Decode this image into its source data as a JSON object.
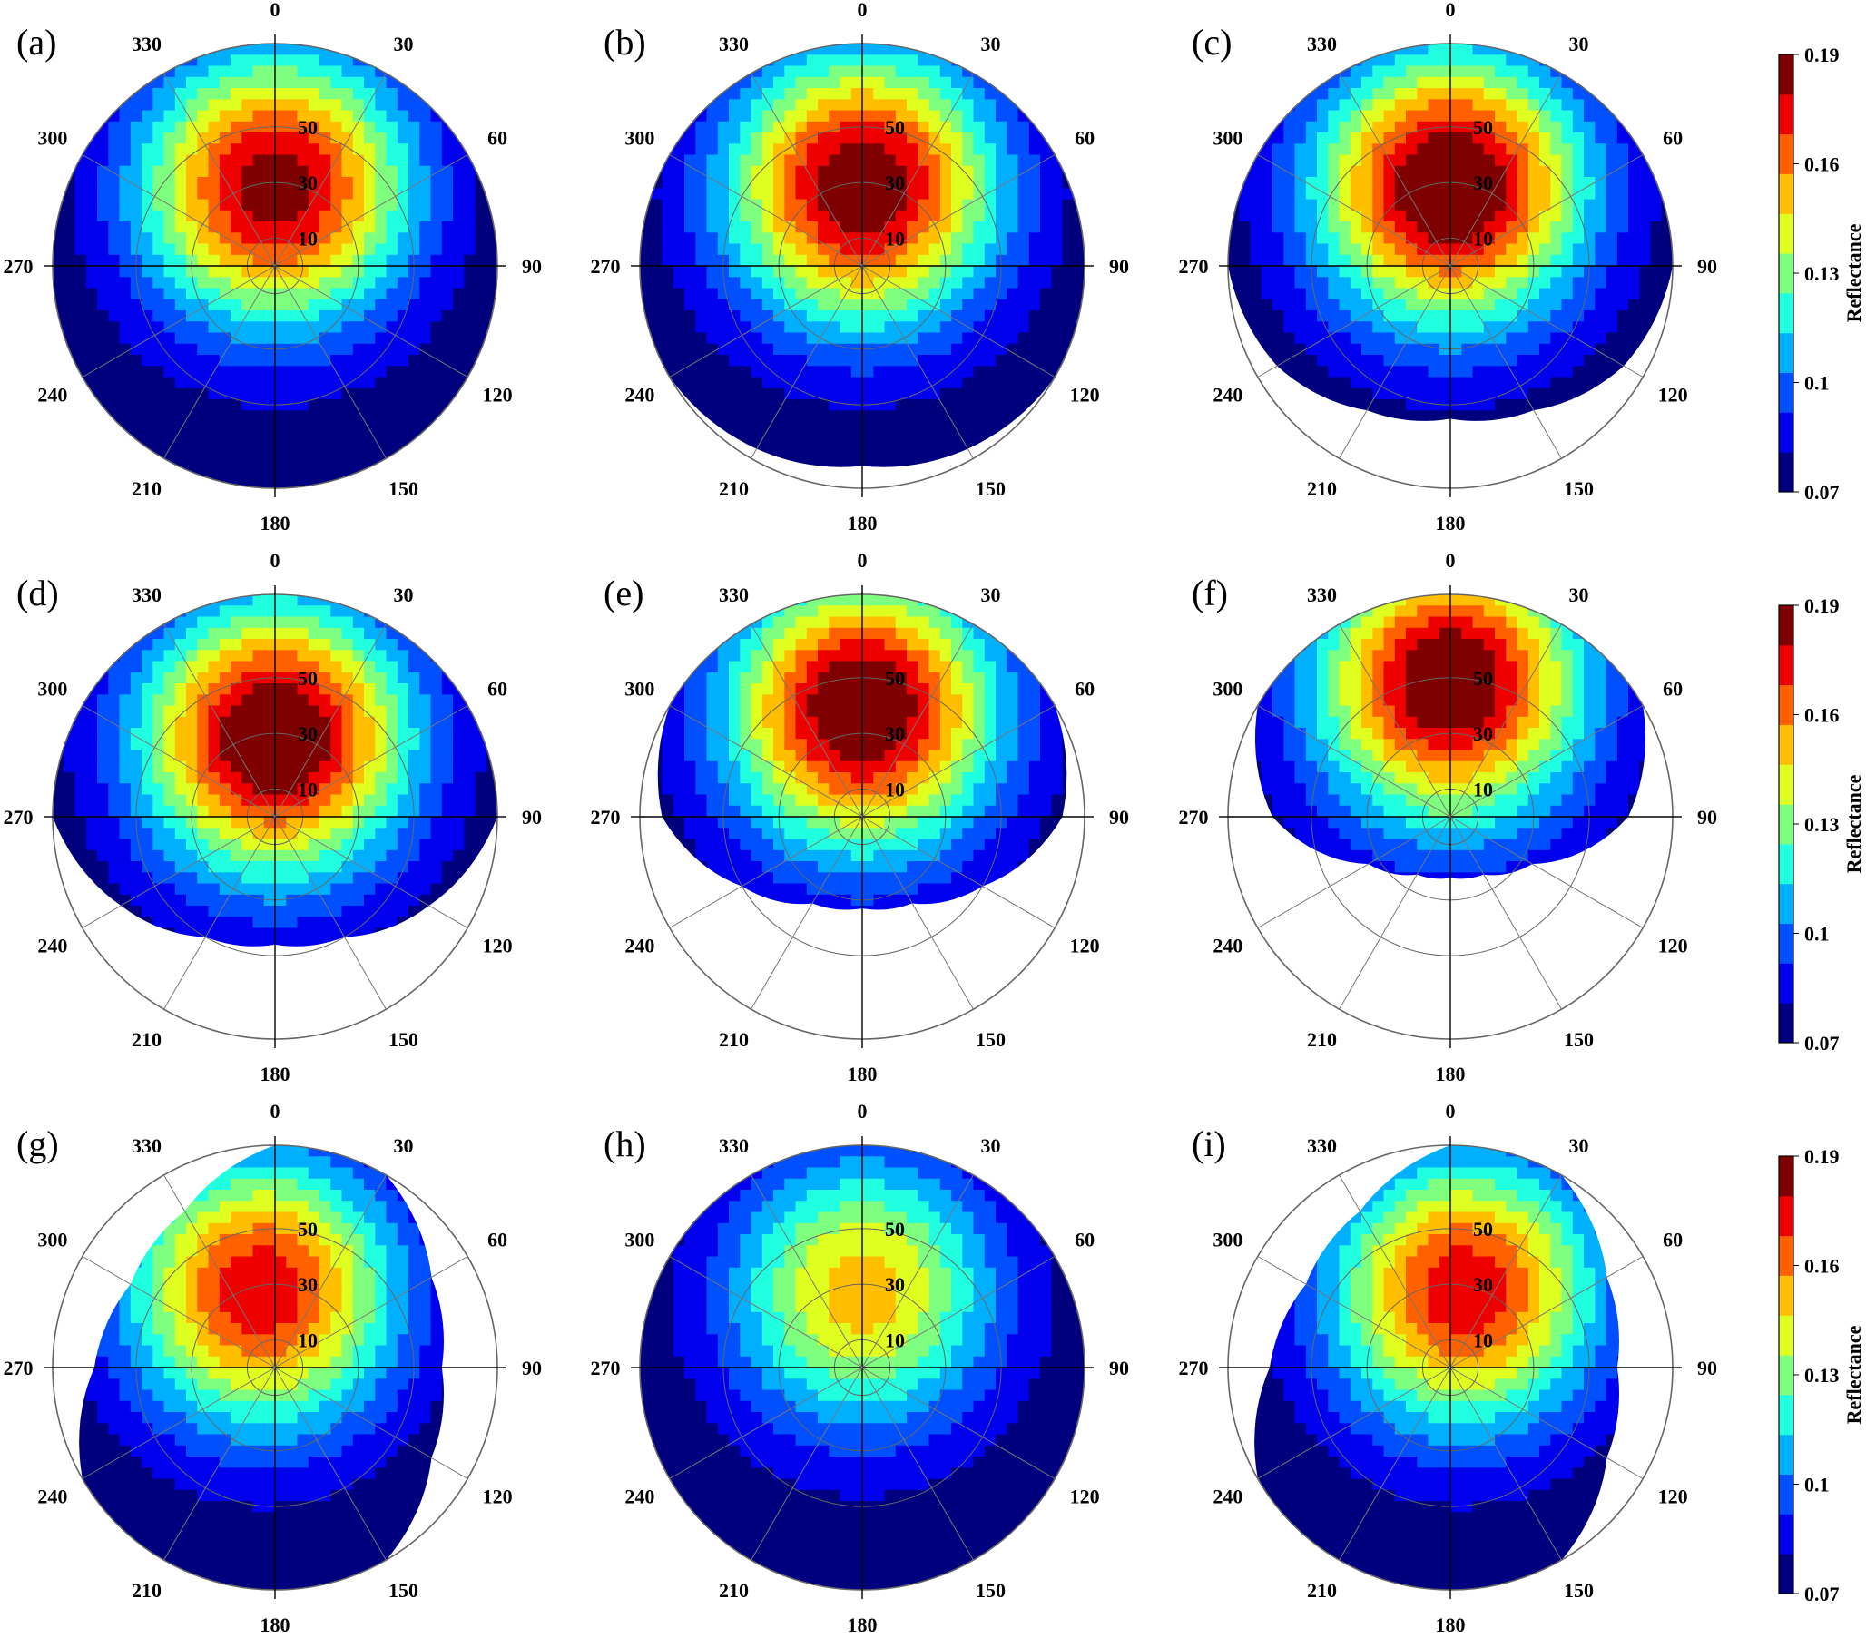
{
  "chart_data": {
    "type": "heatmap",
    "projection": "polar",
    "angular_ticks": [
      "0",
      "30",
      "60",
      "90",
      "120",
      "150",
      "180",
      "210",
      "240",
      "270",
      "300",
      "330"
    ],
    "radial_ticks": [
      "10",
      "30",
      "50"
    ],
    "colorbar": {
      "label": "Reflectance",
      "ticks": [
        "0.19",
        "0.16",
        "0.13",
        "0.1",
        "0.07"
      ],
      "range": [
        0.07,
        0.19
      ],
      "colormap": [
        "#00007f",
        "#0000ef",
        "#0050ff",
        "#00b0ff",
        "#20ffdf",
        "#7fff7f",
        "#dfff20",
        "#ffbf00",
        "#ff6000",
        "#ef0000",
        "#7f0000"
      ]
    },
    "panels": [
      {
        "label": "(a)",
        "hotspot_azimuth": 0,
        "hotspot_zenith": 30,
        "peak": 0.18,
        "coverage_zenith": [
          80,
          80,
          80,
          80,
          80,
          80,
          80,
          80,
          80,
          80,
          80,
          80
        ]
      },
      {
        "label": "(b)",
        "hotspot_azimuth": 0,
        "hotspot_zenith": 30,
        "peak": 0.185,
        "coverage_zenith": [
          80,
          80,
          80,
          80,
          80,
          76,
          72,
          76,
          80,
          80,
          80,
          80
        ]
      },
      {
        "label": "(c)",
        "hotspot_azimuth": 0,
        "hotspot_zenith": 30,
        "peak": 0.19,
        "coverage_zenith": [
          80,
          80,
          80,
          80,
          72,
          60,
          55,
          60,
          72,
          80,
          80,
          80
        ]
      },
      {
        "label": "(d)",
        "hotspot_azimuth": 0,
        "hotspot_zenith": 30,
        "peak": 0.19,
        "coverage_zenith": [
          80,
          80,
          80,
          80,
          64,
          50,
          46,
          50,
          64,
          80,
          80,
          80
        ]
      },
      {
        "label": "(e)",
        "hotspot_azimuth": 0,
        "hotspot_zenith": 40,
        "peak": 0.19,
        "coverage_zenith": [
          80,
          80,
          80,
          72,
          50,
          36,
          33,
          36,
          50,
          72,
          80,
          80
        ]
      },
      {
        "label": "(f)",
        "hotspot_azimuth": 0,
        "hotspot_zenith": 50,
        "peak": 0.19,
        "coverage_zenith": [
          80,
          80,
          80,
          64,
          34,
          24,
          22,
          24,
          34,
          64,
          80,
          80
        ]
      },
      {
        "label": "(g)",
        "hotspot_azimuth": 350,
        "hotspot_zenith": 30,
        "peak": 0.17,
        "coverage_zenith": [
          80,
          80,
          65,
          60,
          65,
          80,
          80,
          80,
          80,
          65,
          60,
          65
        ]
      },
      {
        "label": "(h)",
        "hotspot_azimuth": 0,
        "hotspot_zenith": 30,
        "peak": 0.145,
        "coverage_zenith": [
          80,
          80,
          80,
          80,
          80,
          80,
          80,
          80,
          80,
          80,
          80,
          80
        ]
      },
      {
        "label": "(i)",
        "hotspot_azimuth": 10,
        "hotspot_zenith": 30,
        "peak": 0.17,
        "coverage_zenith": [
          80,
          80,
          65,
          60,
          65,
          80,
          80,
          80,
          80,
          65,
          60,
          65
        ]
      }
    ]
  }
}
